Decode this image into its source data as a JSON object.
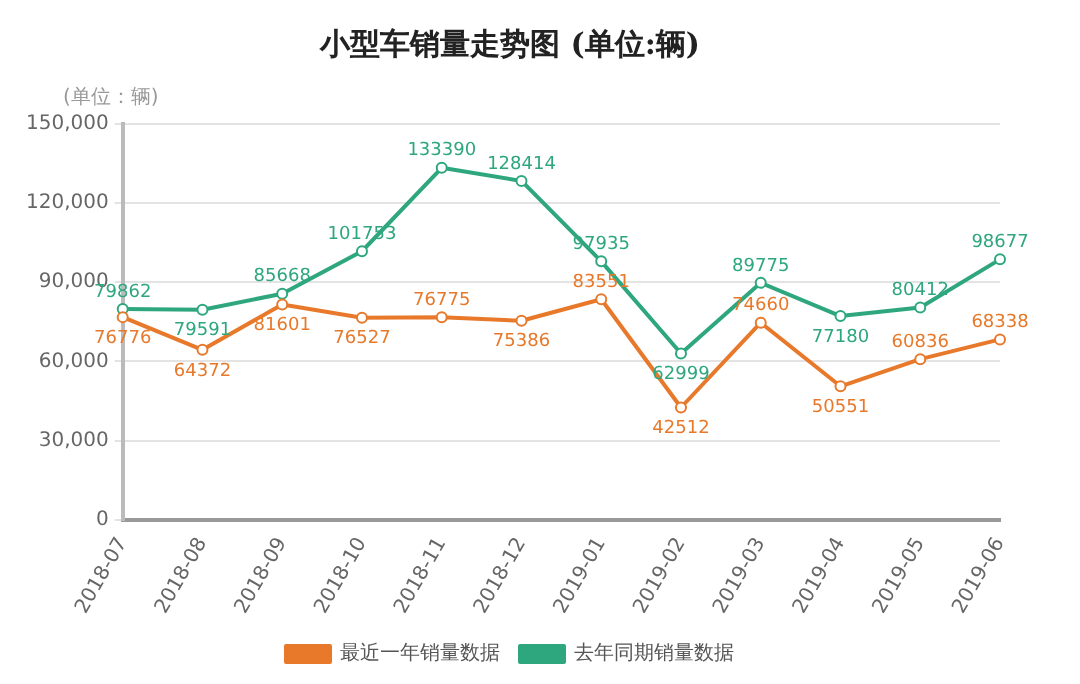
{
  "chart_data": {
    "type": "line",
    "title": "小型车销量走势图 (单位:辆)",
    "ylabel": "(单位：辆)",
    "categories": [
      "2018-07",
      "2018-08",
      "2018-09",
      "2018-10",
      "2018-11",
      "2018-12",
      "2019-01",
      "2019-02",
      "2019-03",
      "2019-04",
      "2019-05",
      "2019-06"
    ],
    "series": [
      {
        "name": "最近一年销量数据",
        "color": "#e8792b",
        "values": [
          76776,
          64372,
          81601,
          76527,
          76775,
          75386,
          83551,
          42512,
          74660,
          50551,
          60836,
          68338
        ]
      },
      {
        "name": "去年同期销量数据",
        "color": "#2fa77e",
        "values": [
          79862,
          79591,
          85668,
          101753,
          133390,
          128414,
          97935,
          62999,
          89775,
          77180,
          80412,
          98677
        ]
      }
    ],
    "ylim": [
      0,
      150000
    ],
    "yticks": [
      0,
      {
        "value": 30000,
        "label": "30,000"
      },
      {
        "value": 60000,
        "label": "60,000"
      },
      {
        "value": 90000,
        "label": "90,000"
      },
      {
        "value": 120000,
        "label": "120,000"
      },
      {
        "value": 150000,
        "label": "150,000"
      }
    ],
    "grid": "y",
    "legend": "bottom",
    "marker": "circle",
    "data_labels": true
  }
}
